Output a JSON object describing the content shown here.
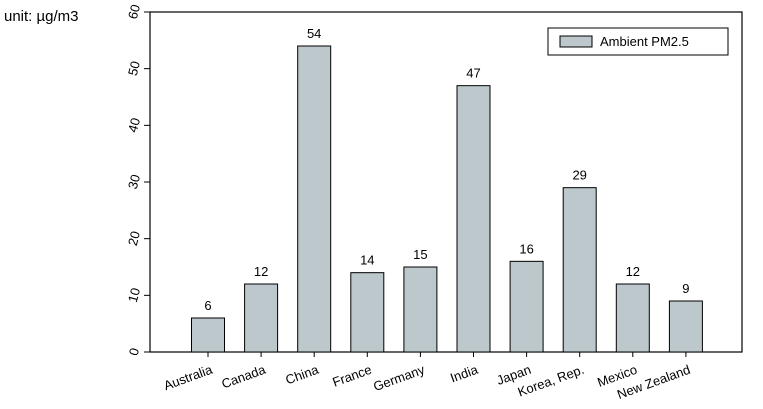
{
  "unit_label": "unit: µg/m3",
  "chart_data": {
    "type": "bar",
    "categories": [
      "Australia",
      "Canada",
      "China",
      "France",
      "Germany",
      "India",
      "Japan",
      "Korea, Rep.",
      "Mexico",
      "New Zealand"
    ],
    "series": [
      {
        "name": "Ambient PM2.5",
        "values": [
          6,
          12,
          54,
          14,
          15,
          47,
          16,
          29,
          12,
          9
        ]
      }
    ],
    "yticks": [
      0,
      10,
      20,
      30,
      40,
      50,
      60
    ],
    "ylim": [
      0,
      60
    ],
    "legend_position": "top-right",
    "grid": false,
    "bar_color": "#bcc8cc",
    "bar_edge_color": "#000000"
  }
}
